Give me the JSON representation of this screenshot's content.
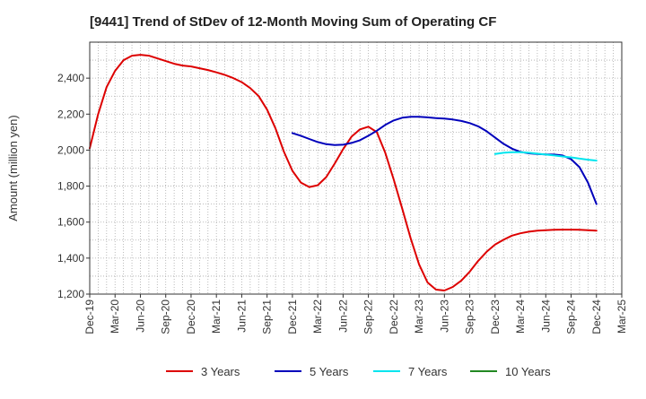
{
  "chart_data": {
    "type": "line",
    "title": "[9441]  Trend of StDev of 12-Month Moving Sum of Operating CF",
    "xlabel": "",
    "ylabel": "Amount (million yen)",
    "ylim": [
      1200,
      2600
    ],
    "yticks": [
      1200,
      1400,
      1600,
      1800,
      2000,
      2200,
      2400
    ],
    "ytick_labels": [
      "1,200",
      "1,400",
      "1,600",
      "1,800",
      "2,000",
      "2,200",
      "2,400"
    ],
    "xlim": [
      0,
      63
    ],
    "x_ticks": [
      {
        "label": "Dec-19",
        "index": 0
      },
      {
        "label": "Mar-20",
        "index": 3
      },
      {
        "label": "Jun-20",
        "index": 6
      },
      {
        "label": "Sep-20",
        "index": 9
      },
      {
        "label": "Dec-20",
        "index": 12
      },
      {
        "label": "Mar-21",
        "index": 15
      },
      {
        "label": "Jun-21",
        "index": 18
      },
      {
        "label": "Sep-21",
        "index": 21
      },
      {
        "label": "Dec-21",
        "index": 24
      },
      {
        "label": "Mar-22",
        "index": 27
      },
      {
        "label": "Jun-22",
        "index": 30
      },
      {
        "label": "Sep-22",
        "index": 33
      },
      {
        "label": "Dec-22",
        "index": 36
      },
      {
        "label": "Mar-23",
        "index": 39
      },
      {
        "label": "Jun-23",
        "index": 42
      },
      {
        "label": "Sep-23",
        "index": 45
      },
      {
        "label": "Dec-23",
        "index": 48
      },
      {
        "label": "Mar-24",
        "index": 51
      },
      {
        "label": "Jun-24",
        "index": 54
      },
      {
        "label": "Sep-24",
        "index": 57
      },
      {
        "label": "Dec-24",
        "index": 60
      },
      {
        "label": "Mar-25",
        "index": 63
      }
    ],
    "grid": true,
    "legend_position": "bottom",
    "series": [
      {
        "name": "3 Years",
        "color": "#dd0000",
        "x": [
          0,
          1,
          2,
          3,
          4,
          5,
          6,
          7,
          8,
          9,
          10,
          11,
          12,
          13,
          14,
          15,
          16,
          17,
          18,
          19,
          20,
          21,
          22,
          23,
          24,
          25,
          26,
          27,
          28,
          29,
          30,
          31,
          32,
          33,
          34,
          35,
          36,
          37,
          38,
          39,
          40,
          41,
          42,
          43,
          44,
          45,
          46,
          47,
          48,
          49,
          50,
          51,
          52,
          53,
          54,
          55,
          56,
          57,
          58,
          59,
          60
        ],
        "values": [
          2010,
          2200,
          2350,
          2440,
          2500,
          2525,
          2530,
          2525,
          2510,
          2495,
          2480,
          2470,
          2465,
          2455,
          2445,
          2432,
          2418,
          2400,
          2378,
          2345,
          2300,
          2225,
          2120,
          1990,
          1885,
          1820,
          1795,
          1805,
          1850,
          1925,
          2005,
          2075,
          2115,
          2130,
          2100,
          1985,
          1835,
          1675,
          1510,
          1365,
          1265,
          1225,
          1220,
          1240,
          1275,
          1325,
          1385,
          1435,
          1475,
          1502,
          1525,
          1538,
          1547,
          1552,
          1555,
          1557,
          1558,
          1558,
          1557,
          1555,
          1552
        ]
      },
      {
        "name": "5 Years",
        "color": "#0000bb",
        "x": [
          24,
          25,
          26,
          27,
          28,
          29,
          30,
          31,
          32,
          33,
          34,
          35,
          36,
          37,
          38,
          39,
          40,
          41,
          42,
          43,
          44,
          45,
          46,
          47,
          48,
          49,
          50,
          51,
          52,
          53,
          54,
          55,
          56,
          57,
          58,
          59,
          60
        ],
        "values": [
          2095,
          2080,
          2062,
          2045,
          2033,
          2028,
          2030,
          2040,
          2055,
          2080,
          2108,
          2140,
          2165,
          2180,
          2185,
          2185,
          2182,
          2178,
          2175,
          2170,
          2162,
          2150,
          2132,
          2105,
          2070,
          2035,
          2008,
          1990,
          1982,
          1978,
          1976,
          1975,
          1970,
          1950,
          1905,
          1820,
          1700
        ]
      },
      {
        "name": "7 Years",
        "color": "#00e5ee",
        "x": [
          48,
          49,
          50,
          51,
          52,
          53,
          54,
          55,
          56,
          57,
          58,
          59,
          60
        ],
        "values": [
          1978,
          1985,
          1988,
          1988,
          1985,
          1980,
          1975,
          1970,
          1965,
          1960,
          1953,
          1947,
          1942
        ]
      },
      {
        "name": "10 Years",
        "color": "#228822",
        "x": [],
        "values": []
      }
    ]
  }
}
